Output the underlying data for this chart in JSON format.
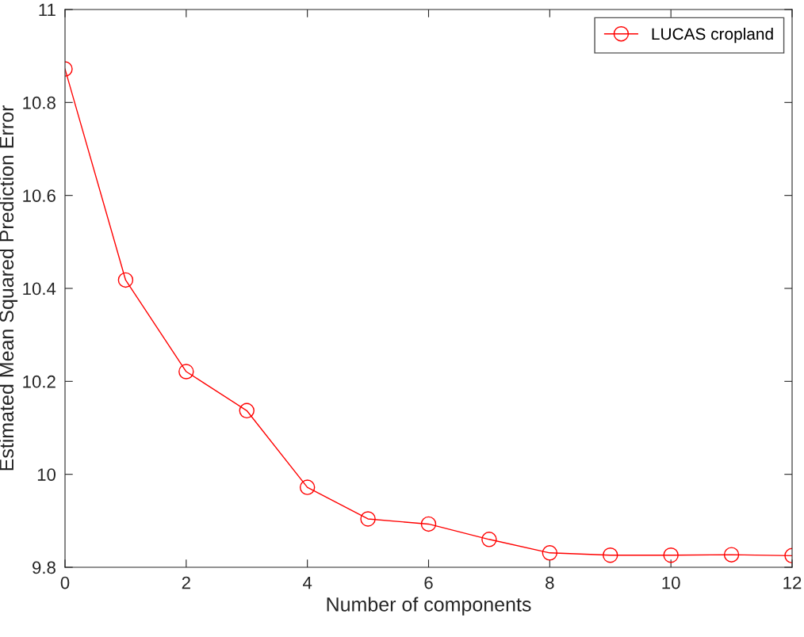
{
  "chart_data": {
    "type": "line",
    "xlabel": "Number of components",
    "ylabel": "Estimated Mean Squared Prediction Error",
    "x": [
      0,
      1,
      2,
      3,
      4,
      5,
      6,
      7,
      8,
      9,
      10,
      11,
      12
    ],
    "series": [
      {
        "name": "LUCAS cropland",
        "color": "#ff0000",
        "values": [
          10.872,
          10.418,
          10.221,
          10.137,
          9.972,
          9.904,
          9.893,
          9.86,
          9.831,
          9.826,
          9.826,
          9.827,
          9.825
        ]
      }
    ],
    "xlim": [
      0,
      12
    ],
    "xticks": [
      0,
      2,
      4,
      6,
      8,
      10,
      12
    ],
    "ylim": [
      9.8,
      11
    ],
    "yticks": [
      9.8,
      10,
      10.2,
      10.4,
      10.6,
      10.8,
      11
    ],
    "grid": false,
    "legend": "top right",
    "marker": "circle",
    "line_style": "solid"
  }
}
